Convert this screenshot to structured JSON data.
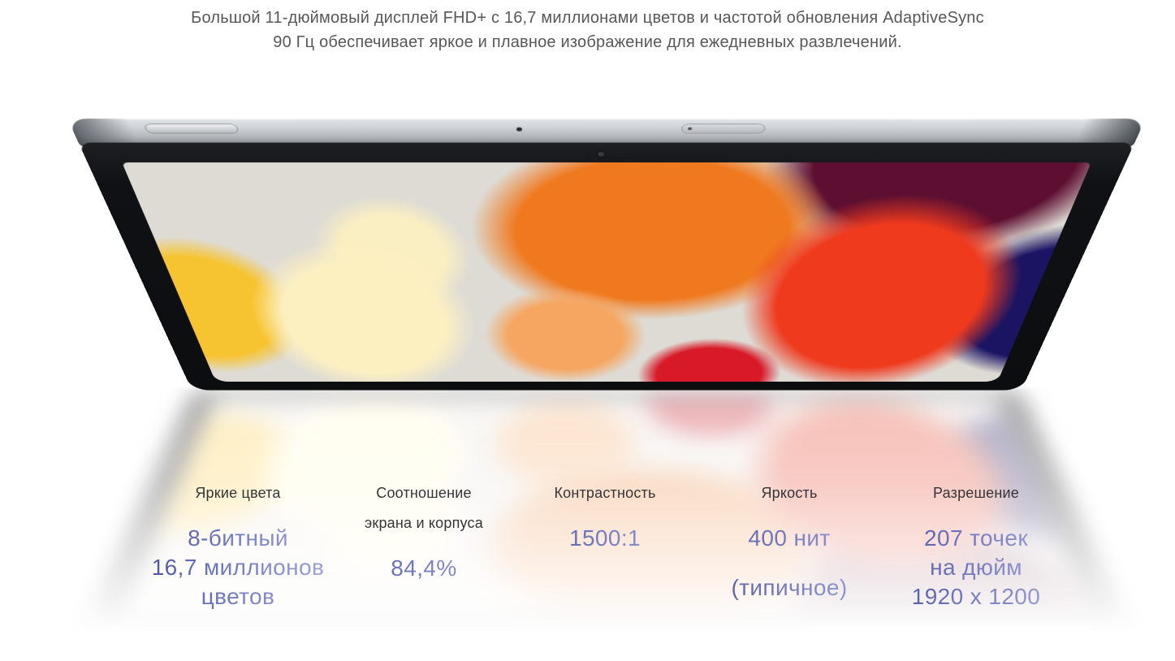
{
  "header": {
    "line1": "Большой 11-дюймовый дисплей FHD+ с 16,7 миллионами цветов и частотой обновления AdaptiveSync",
    "line2": "90 Гц обеспечивает яркое и плавное изображение для ежедневных развлечений."
  },
  "specs": [
    {
      "label_lines": [
        "Яркие цвета"
      ],
      "value_lines": [
        "8-битный",
        "16,7 миллионов",
        "цветов"
      ]
    },
    {
      "label_lines": [
        "Соотношение",
        "экрана и корпуса"
      ],
      "value_lines": [
        "84,4%"
      ]
    },
    {
      "label_lines": [
        "Контрастность"
      ],
      "value_lines": [
        "1500:1"
      ]
    },
    {
      "label_lines": [
        "Яркость"
      ],
      "value_lines": [
        "400 нит",
        "(типичное)"
      ]
    },
    {
      "label_lines": [
        "Разрешение"
      ],
      "value_lines": [
        "207 точек",
        "на дюйм",
        "1920 x 1200"
      ]
    }
  ],
  "colors": {
    "page_background": "#ffffff",
    "heading_text": "#57575a",
    "spec_label_text": "#343437",
    "spec_value_gradient_start": "#41459a",
    "spec_value_gradient_end": "#adb2e0",
    "tablet_metal_edge": "#b3b8bd",
    "tablet_bezel": "#0c0d0f",
    "wallpaper_background": "#dedbd4",
    "wallpaper_yellow": "#f7c431",
    "wallpaper_pale_yellow": "#fcf0c1",
    "wallpaper_orange": "#f0791f",
    "wallpaper_peach": "#f6a660",
    "wallpaper_red": "#ef3a1e",
    "wallpaper_deep_red": "#d81a28",
    "wallpaper_maroon": "#5e0f31",
    "wallpaper_navy": "#1b1463"
  }
}
